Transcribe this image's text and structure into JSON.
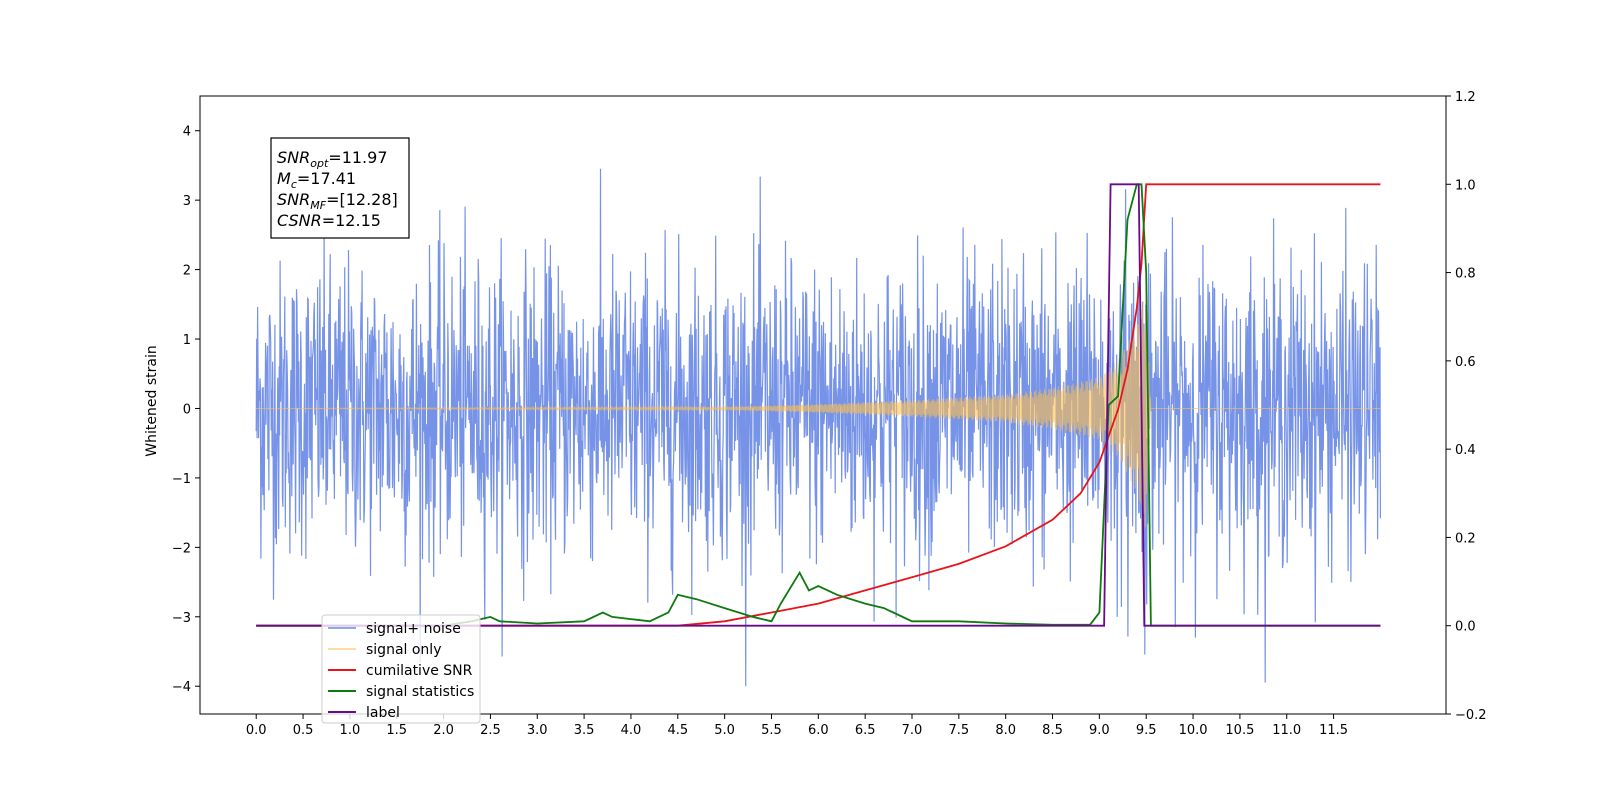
{
  "chart_data": {
    "type": "line",
    "ylabel": "Whitened strain",
    "ylim": [
      -4.4,
      4.5
    ],
    "y2lim": [
      -0.2,
      1.2
    ],
    "xlim": [
      -0.6,
      12.7
    ],
    "xticks": [
      0.0,
      0.5,
      1.0,
      1.5,
      2.0,
      2.5,
      3.0,
      3.5,
      4.0,
      4.5,
      5.0,
      5.5,
      6.0,
      6.5,
      7.0,
      7.5,
      8.0,
      8.5,
      9.0,
      9.5,
      10.0,
      10.5,
      11.0,
      11.5
    ],
    "yticks": [
      -4,
      -3,
      -2,
      -1,
      0,
      1,
      2,
      3,
      4
    ],
    "y2ticks": [
      -0.2,
      0.0,
      0.2,
      0.4,
      0.6,
      0.8,
      1.0,
      1.2
    ],
    "grid": false,
    "legend_position": "lower-left",
    "annotations": [
      {
        "base": "SNR",
        "sub": "opt",
        "value": "=11.97"
      },
      {
        "base": "M",
        "sub": "c",
        "value": "=17.41"
      },
      {
        "base": "SNR",
        "sub": "MF",
        "value": "=[12.28]"
      },
      {
        "base": "CSNR",
        "sub": "",
        "value": "=12.15"
      }
    ],
    "series": [
      {
        "name": "signal+ noise",
        "color": "#6a8ae6",
        "axis": "left",
        "noise_std": 1.0,
        "x_range": [
          0.0,
          12.0
        ]
      },
      {
        "name": "signal only",
        "color": "#ffc04d",
        "axis": "left",
        "envelope": {
          "x": [
            0.0,
            5.0,
            6.0,
            7.0,
            8.0,
            8.5,
            9.0,
            9.2,
            9.4,
            9.5,
            9.55,
            12.0
          ],
          "amp": [
            0.0,
            0.02,
            0.06,
            0.12,
            0.2,
            0.3,
            0.45,
            0.7,
            1.2,
            1.8,
            0.0,
            0.0
          ]
        }
      },
      {
        "name": "cumilative SNR",
        "color": "#e8141a",
        "axis": "right",
        "x": [
          0.0,
          4.5,
          5.0,
          5.5,
          6.0,
          6.5,
          7.0,
          7.5,
          8.0,
          8.5,
          8.8,
          9.0,
          9.1,
          9.2,
          9.3,
          9.4,
          9.45,
          9.5,
          10.0,
          11.0,
          12.0
        ],
        "y": [
          0.0,
          0.0,
          0.01,
          0.03,
          0.05,
          0.08,
          0.11,
          0.14,
          0.18,
          0.24,
          0.3,
          0.37,
          0.43,
          0.49,
          0.58,
          0.72,
          0.82,
          1.0,
          1.0,
          1.0,
          1.0
        ]
      },
      {
        "name": "signal statistics",
        "color": "#0f7a0f",
        "axis": "right",
        "x": [
          0.0,
          2.0,
          2.3,
          2.5,
          2.6,
          3.0,
          3.5,
          3.7,
          3.8,
          4.0,
          4.2,
          4.4,
          4.5,
          4.7,
          5.0,
          5.3,
          5.5,
          5.6,
          5.8,
          5.9,
          6.0,
          6.2,
          6.5,
          6.7,
          6.8,
          7.0,
          7.5,
          8.0,
          8.5,
          8.9,
          9.0,
          9.1,
          9.2,
          9.3,
          9.4,
          9.45,
          9.5,
          9.55,
          12.0
        ],
        "y": [
          0.0,
          0.0,
          0.01,
          0.02,
          0.01,
          0.005,
          0.01,
          0.03,
          0.02,
          0.015,
          0.01,
          0.03,
          0.07,
          0.06,
          0.04,
          0.02,
          0.01,
          0.05,
          0.12,
          0.08,
          0.09,
          0.07,
          0.05,
          0.04,
          0.03,
          0.01,
          0.01,
          0.005,
          0.002,
          0.002,
          0.03,
          0.5,
          0.52,
          0.92,
          1.0,
          1.0,
          0.8,
          0.0,
          0.0
        ]
      },
      {
        "name": "label",
        "color": "#6a0a8a",
        "axis": "right",
        "x": [
          0.0,
          9.05,
          9.12,
          9.42,
          9.48,
          12.0
        ],
        "y": [
          0.0,
          0.0,
          1.0,
          1.0,
          0.0,
          0.0
        ]
      }
    ]
  }
}
